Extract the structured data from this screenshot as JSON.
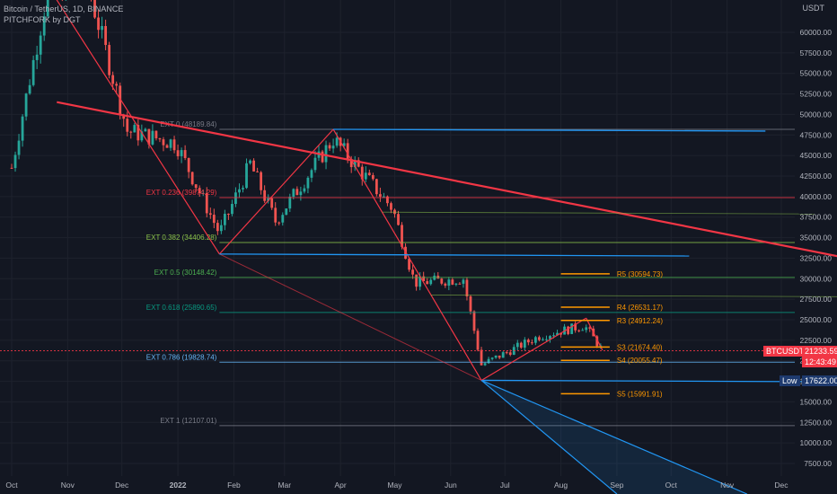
{
  "header": {
    "symbol": "Bitcoin / TetherUS, 1D, BINANCE",
    "indicator": "PITCHFORK by DGT"
  },
  "axis": {
    "currency": "USDT"
  },
  "price_tags": {
    "symbol": "BTCUSDT",
    "price": "21233.59",
    "countdown": "12:43:49",
    "low_label": "Low",
    "low_value": "17622.00"
  },
  "colors": {
    "background": "#131722",
    "bull": "#26a69a",
    "bear": "#ef5350",
    "pitchfork_red": "#f23645",
    "pitchfork_blue": "#2196f3",
    "pivot_orange": "#ff9800"
  },
  "chart_data": {
    "type": "candlestick",
    "title": "Bitcoin / TetherUS, 1D, BINANCE",
    "ylabel": "USDT",
    "ylim": [
      5000,
      63000
    ],
    "y_ticks": [
      "60000.00",
      "57500.00",
      "55000.00",
      "52500.00",
      "50000.00",
      "47500.00",
      "45000.00",
      "42500.00",
      "40000.00",
      "37500.00",
      "35000.00",
      "32500.00",
      "30000.00",
      "27500.00",
      "25000.00",
      "22500.00",
      "20000.00",
      "17500.00",
      "15000.00",
      "12500.00",
      "10000.00",
      "7500.00"
    ],
    "x_ticks": [
      "Oct",
      "Nov",
      "Dec",
      "2022",
      "Feb",
      "Mar",
      "Apr",
      "May",
      "Jun",
      "Jul",
      "Aug",
      "Sep",
      "Oct",
      "Nov",
      "Dec"
    ],
    "swing_points": [
      {
        "date": "2021-11-10",
        "price": 69000
      },
      {
        "date": "2022-01-24",
        "price": 33000
      },
      {
        "date": "2022-03-28",
        "price": 48189.84
      },
      {
        "date": "2022-06-18",
        "price": 17622
      },
      {
        "date": "2022-08-15",
        "price": 25200
      }
    ],
    "extension_levels": [
      {
        "label": "EXT 0 (48189.84)",
        "value": 48189.84,
        "color": "#787b86"
      },
      {
        "label": "EXT 0.236 (39874.29)",
        "value": 39874.29,
        "color": "#f23645"
      },
      {
        "label": "EXT 0.382 (34406.28)",
        "value": 34406.28,
        "color": "#8bc34a"
      },
      {
        "label": "EXT 0.5 (30148.42)",
        "value": 30148.42,
        "color": "#4caf50"
      },
      {
        "label": "EXT 0.618 (25890.65)",
        "value": 25890.65,
        "color": "#089981"
      },
      {
        "label": "EXT 0.786 (19828.74)",
        "value": 19828.74,
        "color": "#64b5f6"
      },
      {
        "label": "EXT 1 (12107.01)",
        "value": 12107.01,
        "color": "#787b86"
      }
    ],
    "pivot_levels": [
      {
        "label": "R5 (30594.73)",
        "value": 30594.73
      },
      {
        "label": "R4 (26531.17)",
        "value": 26531.17
      },
      {
        "label": "R3 (24912.24)",
        "value": 24912.24
      },
      {
        "label": "S3 (21674.40)",
        "value": 21674.4
      },
      {
        "label": "S4 (20055.47)",
        "value": 20055.47
      },
      {
        "label": "S5 (15991.91)",
        "value": 15991.91
      }
    ],
    "last_price": 21233.59,
    "low": 17622
  }
}
